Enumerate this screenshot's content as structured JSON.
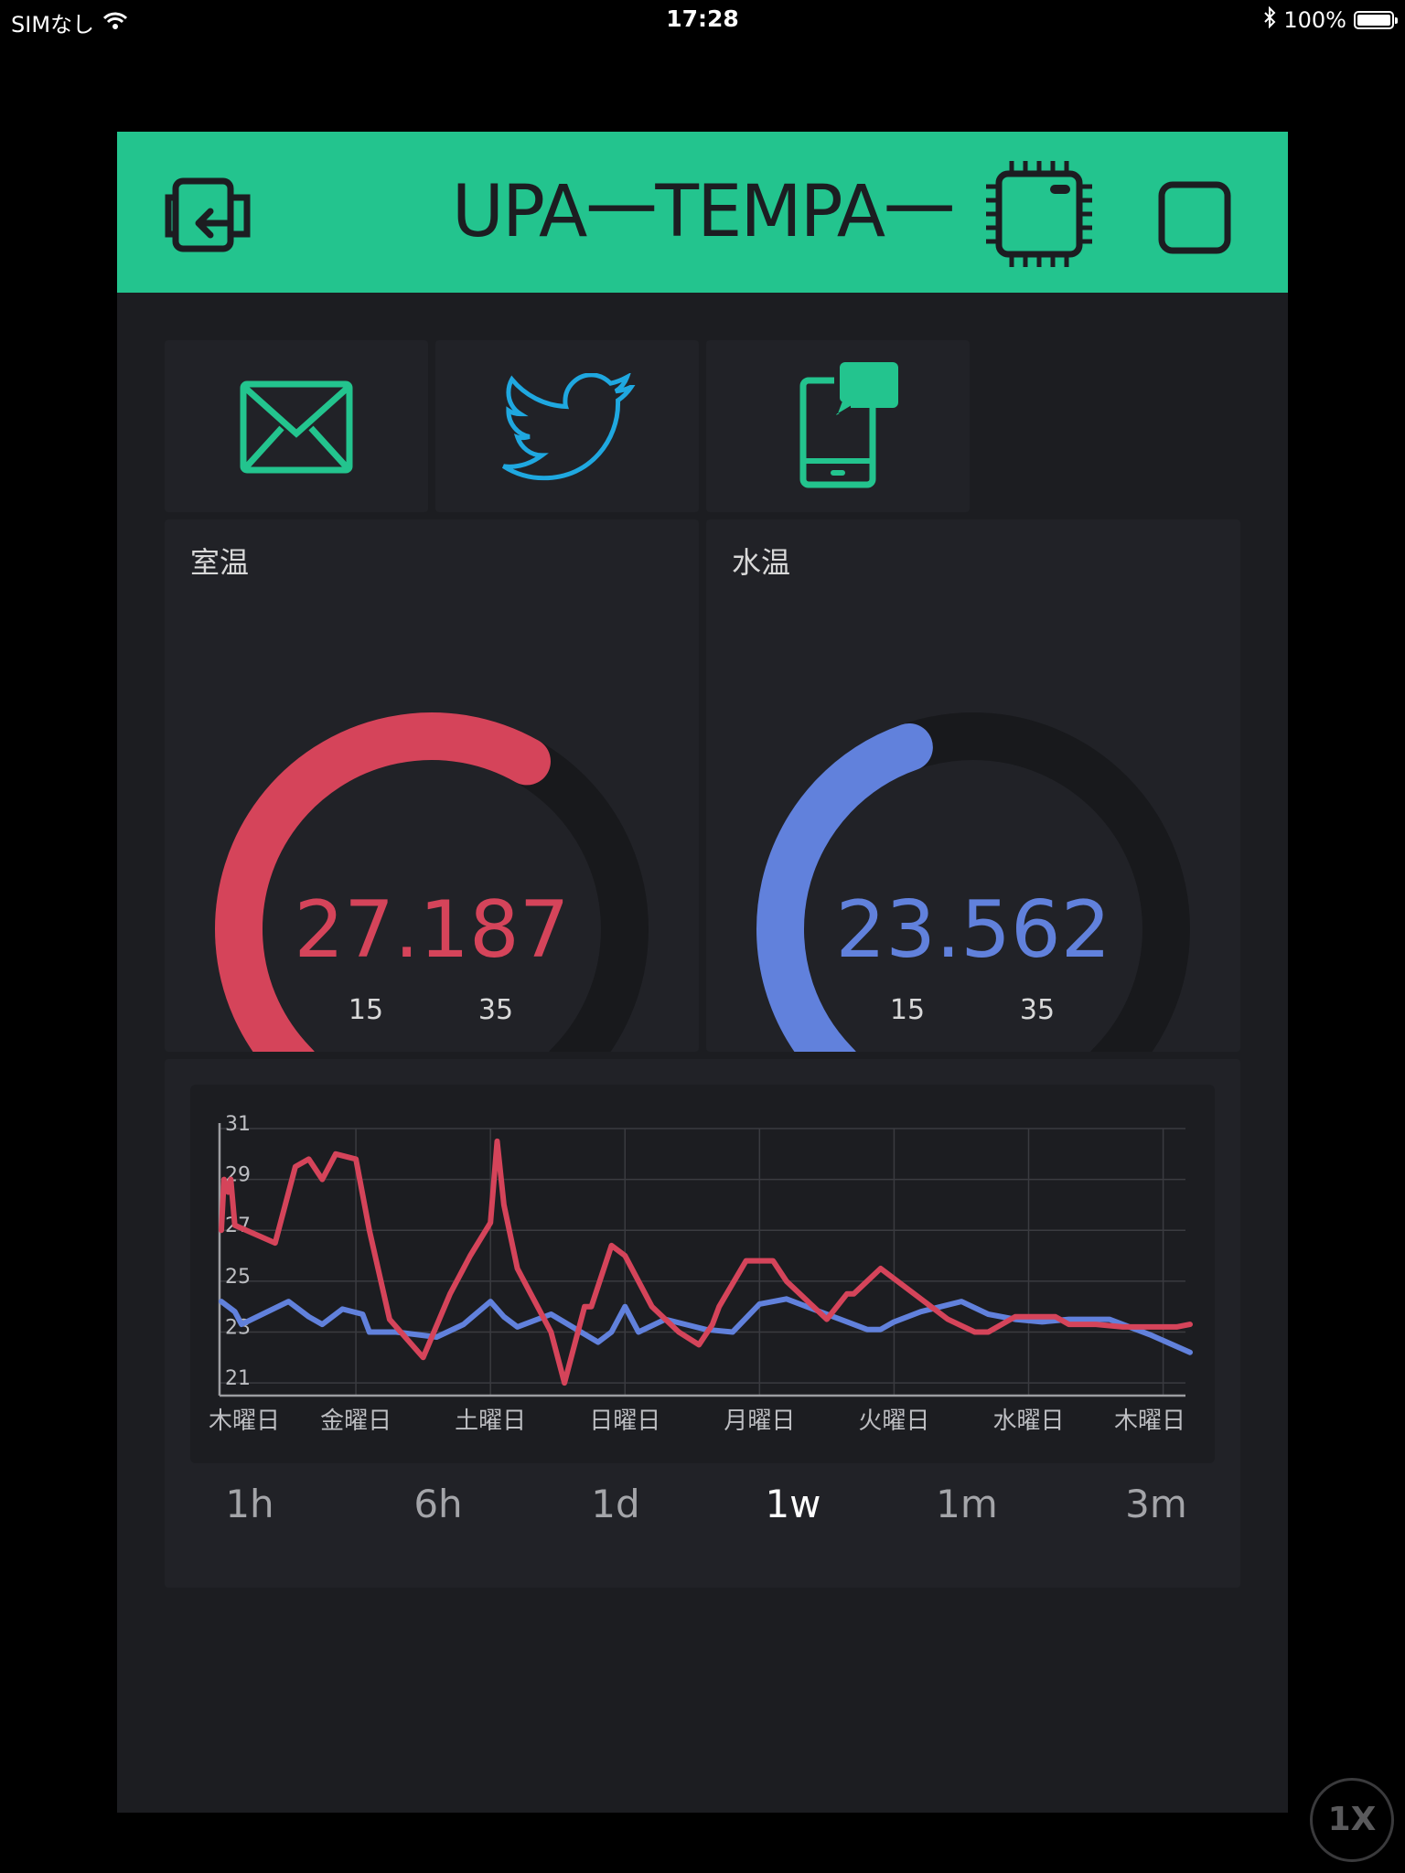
{
  "status_bar": {
    "carrier": "SIMなし",
    "time": "17:28",
    "battery": "100%"
  },
  "header": {
    "title": "UPA一TEMPA一"
  },
  "widgets": {
    "room": {
      "label": "室温",
      "value": "27.187",
      "min": "15",
      "max": "35",
      "color": "#d5445a",
      "numeric": 27.187,
      "range": [
        15,
        35
      ]
    },
    "water": {
      "label": "水温",
      "value": "23.562",
      "min": "15",
      "max": "35",
      "color": "#6181dc",
      "numeric": 23.562,
      "range": [
        15,
        35
      ]
    }
  },
  "notify_icons": [
    "mail-icon",
    "twitter-icon",
    "push-notification-icon"
  ],
  "range_buttons": [
    "1h",
    "6h",
    "1d",
    "1w",
    "1m",
    "3m"
  ],
  "active_range": "1w",
  "speed_badge": "1X",
  "chart_data": {
    "type": "line",
    "categories": [
      "木曜日",
      "金曜日",
      "土曜日",
      "日曜日",
      "月曜日",
      "火曜日",
      "水曜日",
      "木曜日"
    ],
    "y_ticks": [
      "21",
      "23",
      "25",
      "27",
      "29",
      "31"
    ],
    "ylim": [
      20.5,
      31
    ],
    "grid": true,
    "series": [
      {
        "color": "#d5445a",
        "x": [
          0,
          0.02,
          0.05,
          0.07,
          0.1,
          0.4,
          0.55,
          0.65,
          0.75,
          0.85,
          1.0,
          1.1,
          1.25,
          1.5,
          1.7,
          1.85,
          2.0,
          2.05,
          2.1,
          2.2,
          2.3,
          2.45,
          2.55,
          2.7,
          2.75,
          2.9,
          3.0,
          3.2,
          3.4,
          3.55,
          3.65,
          3.7,
          3.9,
          4.1,
          4.2,
          4.3,
          4.5,
          4.65,
          4.7,
          4.9,
          5.4,
          5.6,
          5.7,
          5.9,
          6.2,
          6.3,
          6.5,
          6.7,
          7.0,
          7.1,
          7.2
        ],
        "values": [
          27,
          29,
          28.5,
          29,
          27.2,
          26.5,
          29.5,
          29.8,
          29,
          30,
          29.8,
          27,
          23.5,
          22,
          24.5,
          26,
          27.3,
          30.5,
          28,
          25.5,
          24.5,
          23,
          21,
          24,
          24,
          26.4,
          26,
          24,
          23,
          22.5,
          23.3,
          24,
          25.8,
          25.8,
          25,
          24.5,
          23.5,
          24.5,
          24.5,
          25.5,
          23.5,
          23,
          23,
          23.6,
          23.6,
          23.3,
          23.3,
          23.2,
          23.2,
          23.2,
          23.3
        ]
      },
      {
        "color": "#6181dc",
        "x": [
          0,
          0.1,
          0.15,
          0.5,
          0.65,
          0.75,
          0.9,
          1.05,
          1.1,
          1.3,
          1.6,
          1.8,
          2.0,
          2.1,
          2.2,
          2.45,
          2.8,
          2.9,
          3.0,
          3.1,
          3.3,
          3.6,
          3.8,
          4.0,
          4.2,
          4.35,
          4.6,
          4.8,
          4.9,
          5.0,
          5.2,
          5.5,
          5.7,
          5.9,
          6.1,
          6.3,
          6.6,
          6.9,
          7.2
        ],
        "values": [
          24.2,
          23.8,
          23.3,
          24.2,
          23.6,
          23.3,
          23.9,
          23.7,
          23,
          23,
          22.8,
          23.3,
          24.2,
          23.6,
          23.2,
          23.7,
          22.6,
          23,
          24,
          23,
          23.5,
          23.1,
          23,
          24.1,
          24.3,
          24,
          23.5,
          23.1,
          23.1,
          23.4,
          23.8,
          24.2,
          23.7,
          23.5,
          23.4,
          23.5,
          23.5,
          22.9,
          22.2
        ]
      }
    ]
  }
}
